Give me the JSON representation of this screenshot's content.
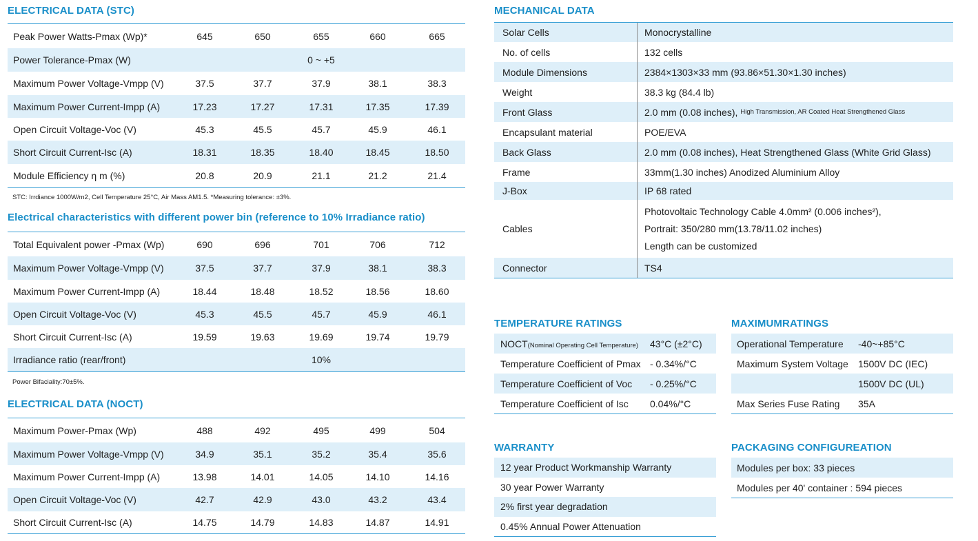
{
  "stc": {
    "title": "ELECTRICAL DATA (STC)",
    "rows": [
      {
        "label": "Peak Power Watts-Pmax (Wp)*",
        "values": [
          "645",
          "650",
          "655",
          "660",
          "665"
        ]
      },
      {
        "label": "Power Tolerance-Pmax (W)",
        "span": "0 ~ +5"
      },
      {
        "label": "Maximum Power Voltage-Vmpp (V)",
        "values": [
          "37.5",
          "37.7",
          "37.9",
          "38.1",
          "38.3"
        ]
      },
      {
        "label": "Maximum Power Current-Impp (A)",
        "values": [
          "17.23",
          "17.27",
          "17.31",
          "17.35",
          "17.39"
        ]
      },
      {
        "label": "Open Circuit Voltage-Voc (V)",
        "values": [
          "45.3",
          "45.5",
          "45.7",
          "45.9",
          "46.1"
        ]
      },
      {
        "label": "Short Circuit Current-Isc (A)",
        "values": [
          "18.31",
          "18.35",
          "18.40",
          "18.45",
          "18.50"
        ]
      },
      {
        "label": "Module Efficiency η m (%)",
        "values": [
          "20.8",
          "20.9",
          "21.1",
          "21.2",
          "21.4"
        ]
      }
    ],
    "note": "STC: Irrdiance 1000W/m2, Cell Temperature 25°C, Air Mass AM1.5.   *Measuring tolerance: ±3%."
  },
  "bifacial": {
    "title": "Electrical characteristics with different power bin (reference to 10%  Irradiance ratio)",
    "rows": [
      {
        "label": "Total Equivalent power -Pmax (Wp)",
        "values": [
          "690",
          "696",
          "701",
          "706",
          "712"
        ]
      },
      {
        "label": "Maximum Power Voltage-Vmpp (V)",
        "values": [
          "37.5",
          "37.7",
          "37.9",
          "38.1",
          "38.3"
        ]
      },
      {
        "label": "Maximum Power Current-Impp (A)",
        "values": [
          "18.44",
          "18.48",
          "18.52",
          "18.56",
          "18.60"
        ]
      },
      {
        "label": "Open Circuit Voltage-Voc  (V)",
        "values": [
          "45.3",
          "45.5",
          "45.7",
          "45.9",
          "46.1"
        ]
      },
      {
        "label": "Short Circuit Current-Isc (A)",
        "values": [
          "19.59",
          "19.63",
          "19.69",
          "19.74",
          "19.79"
        ]
      },
      {
        "label": "Irradiance ratio (rear/front)",
        "span": "10%"
      }
    ],
    "note": "Power Bifaciality:70±5%."
  },
  "noct": {
    "title": "ELECTRICAL DATA (NOCT)",
    "rows": [
      {
        "label": "Maximum Power-Pmax (Wp)",
        "values": [
          "488",
          "492",
          "495",
          "499",
          "504"
        ]
      },
      {
        "label": "Maximum Power Voltage-Vmpp (V)",
        "values": [
          "34.9",
          "35.1",
          "35.2",
          "35.4",
          "35.6"
        ]
      },
      {
        "label": "Maximum Power Current-Impp (A)",
        "values": [
          "13.98",
          "14.01",
          "14.05",
          "14.10",
          "14.16"
        ]
      },
      {
        "label": "Open Circuit Voltage-Voc (V)",
        "values": [
          "42.7",
          "42.9",
          "43.0",
          "43.2",
          "43.4"
        ]
      },
      {
        "label": "Short Circuit Current-Isc (A)",
        "values": [
          "14.75",
          "14.79",
          "14.83",
          "14.87",
          "14.91"
        ]
      }
    ]
  },
  "mechanical": {
    "title": "MECHANICAL DATA",
    "rows": [
      {
        "key": "Solar Cells",
        "value": "Monocrystalline"
      },
      {
        "key": "No. of cells",
        "value": "132 cells"
      },
      {
        "key": "Module Dimensions",
        "value": "2384×1303×33 mm (93.86×51.30×1.30 inches)"
      },
      {
        "key": "Weight",
        "value": "38.3 kg (84.4 lb)"
      },
      {
        "key": "Front Glass",
        "value": "2.0 mm (0.08 inches),",
        "small": "High Transmission, AR Coated Heat Strengthened Glass"
      },
      {
        "key": "Encapsulant material",
        "value": "POE/EVA"
      },
      {
        "key": "Back Glass",
        "value": "2.0 mm (0.08 inches), Heat Strengthened Glass (White Grid Glass)"
      },
      {
        "key": "Frame",
        "value": "33mm(1.30 inches)  Anodized  Aluminium Alloy"
      },
      {
        "key": "J-Box",
        "value": "IP 68 rated"
      },
      {
        "key": "Cables",
        "lines": [
          "Photovoltaic Technology Cable 4.0mm² (0.006 inches²),",
          "Portrait: 350/280 mm(13.78/11.02 inches)",
          "Length can be customized"
        ]
      },
      {
        "key": "Connector",
        "value": "TS4"
      }
    ]
  },
  "temperature": {
    "title": "TEMPERATURE RATINGS",
    "rows": [
      {
        "key": "NOCT",
        "small": "(Nominal Operating Cell Temperature)",
        "value": "43°C (±2°C)"
      },
      {
        "key": "Temperature Coefficient of Pmax",
        "value": "- 0.34%/°C"
      },
      {
        "key": "Temperature Coefficient of Voc",
        "value": "- 0.25%/°C"
      },
      {
        "key": "Temperature Coefficient of Isc",
        "value": "0.04%/°C"
      }
    ]
  },
  "maximum": {
    "title": "MAXIMUMRATINGS",
    "rows": [
      {
        "key": "Operational Temperature",
        "value": "-40~+85°C"
      },
      {
        "key": "Maximum System Voltage",
        "value": "1500V DC (IEC)"
      },
      {
        "key": "",
        "value": "1500V DC (UL)"
      },
      {
        "key": "Max Series Fuse Rating",
        "value": "35A"
      }
    ]
  },
  "warranty": {
    "title": "WARRANTY",
    "items": [
      "12 year Product Workmanship Warranty",
      "30 year Power Warranty",
      "2% first year degradation",
      "0.45% Annual Power Attenuation"
    ]
  },
  "packaging": {
    "title": "PACKAGING CONFIGUREATION",
    "items": [
      "Modules per box: 33 pieces",
      "Modules per 40' container :  594 pieces"
    ]
  },
  "colors": {
    "accent": "#1a8fc9",
    "row_alt": "#deeff9",
    "rule": "#3aa0d6"
  }
}
